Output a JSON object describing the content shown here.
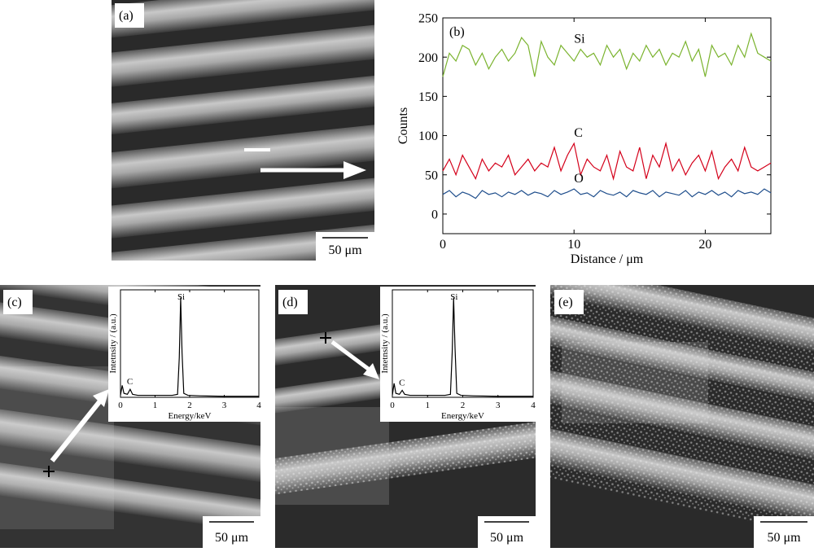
{
  "panels": [
    {
      "label": "(a)",
      "scale_bar": "50 μm"
    },
    {
      "label": "(b)"
    },
    {
      "label": "(c)",
      "scale_bar": "50 μm"
    },
    {
      "label": "(d)",
      "scale_bar": "50 μm"
    },
    {
      "label": "(e)",
      "scale_bar": "50 μm"
    }
  ],
  "chart_data": [
    {
      "type": "line",
      "x_label": "Distance / μm",
      "y_label": "Counts",
      "x": [
        0,
        0.5,
        1,
        1.5,
        2,
        2.5,
        3,
        3.5,
        4,
        4.5,
        5,
        5.5,
        6,
        6.5,
        7,
        7.5,
        8,
        8.5,
        9,
        9.5,
        10,
        10.5,
        11,
        11.5,
        12,
        12.5,
        13,
        13.5,
        14,
        14.5,
        15,
        15.5,
        16,
        16.5,
        17,
        17.5,
        18,
        18.5,
        19,
        19.5,
        20,
        20.5,
        21,
        21.5,
        22,
        22.5,
        23,
        23.5,
        24,
        24.5,
        25
      ],
      "xlim": [
        0,
        25
      ],
      "ylim": [
        -25,
        250
      ],
      "xticks": [
        0,
        10,
        20
      ],
      "yticks": [
        0,
        50,
        100,
        150,
        200,
        250
      ],
      "series": [
        {
          "name": "Si",
          "color": "#7ab32e",
          "values": [
            175,
            205,
            195,
            215,
            210,
            190,
            205,
            185,
            200,
            210,
            195,
            205,
            225,
            215,
            175,
            220,
            200,
            190,
            215,
            205,
            195,
            210,
            200,
            205,
            190,
            215,
            200,
            210,
            185,
            205,
            195,
            215,
            200,
            210,
            190,
            205,
            200,
            220,
            195,
            210,
            175,
            215,
            200,
            205,
            190,
            215,
            200,
            230,
            205,
            200,
            195
          ]
        },
        {
          "name": "C",
          "color": "#d4001a",
          "values": [
            55,
            70,
            50,
            75,
            60,
            45,
            70,
            55,
            65,
            60,
            75,
            50,
            60,
            70,
            55,
            65,
            60,
            85,
            55,
            75,
            90,
            50,
            70,
            60,
            55,
            75,
            45,
            80,
            60,
            55,
            85,
            45,
            75,
            60,
            90,
            55,
            70,
            50,
            65,
            75,
            55,
            80,
            45,
            60,
            70,
            55,
            85,
            60,
            55,
            60,
            65
          ]
        },
        {
          "name": "O",
          "color": "#1f4e8c",
          "values": [
            25,
            30,
            22,
            28,
            25,
            20,
            30,
            25,
            27,
            22,
            28,
            25,
            30,
            24,
            28,
            26,
            22,
            30,
            25,
            28,
            32,
            25,
            27,
            22,
            30,
            26,
            24,
            28,
            22,
            30,
            27,
            25,
            30,
            22,
            28,
            26,
            24,
            30,
            22,
            28,
            25,
            30,
            24,
            28,
            22,
            30,
            26,
            28,
            25,
            32,
            27
          ]
        }
      ]
    },
    {
      "type": "line",
      "x_label": "Energy/keV",
      "y_label": "Intetnsity / (a.u.)",
      "x": [
        0,
        0.05,
        0.1,
        0.2,
        0.28,
        0.35,
        0.5,
        0.8,
        1.2,
        1.5,
        1.65,
        1.7,
        1.74,
        1.78,
        1.83,
        1.95,
        2.3,
        3,
        4
      ],
      "xlim": [
        0,
        4
      ],
      "ylim": [
        0,
        108
      ],
      "xticks": [
        0,
        1,
        2,
        3,
        4
      ],
      "series": [
        {
          "color": "#000000",
          "values": [
            2,
            12,
            4,
            3,
            8,
            3,
            2,
            2,
            2,
            2,
            3,
            40,
            100,
            45,
            4,
            2,
            1.5,
            1,
            1
          ]
        }
      ],
      "peak_labels": [
        {
          "label": "Si",
          "x": 1.74
        },
        {
          "label": "C",
          "x": 0.28
        }
      ]
    },
    {
      "type": "line",
      "x_label": "Energy/keV",
      "y_label": "Intetnsity / (a.u.)",
      "x": [
        0,
        0.05,
        0.1,
        0.2,
        0.28,
        0.35,
        0.5,
        0.8,
        1.2,
        1.5,
        1.65,
        1.7,
        1.74,
        1.78,
        1.83,
        1.95,
        2.3,
        3,
        4
      ],
      "xlim": [
        0,
        4
      ],
      "ylim": [
        0,
        108
      ],
      "xticks": [
        0,
        1,
        2,
        3,
        4
      ],
      "series": [
        {
          "color": "#000000",
          "values": [
            2,
            14,
            4,
            3,
            7,
            3,
            2,
            2,
            2,
            2,
            3,
            45,
            100,
            50,
            4,
            2,
            1.5,
            1,
            1
          ]
        }
      ],
      "peak_labels": [
        {
          "label": "Si",
          "x": 1.74
        },
        {
          "label": "C",
          "x": 0.28
        }
      ]
    }
  ]
}
